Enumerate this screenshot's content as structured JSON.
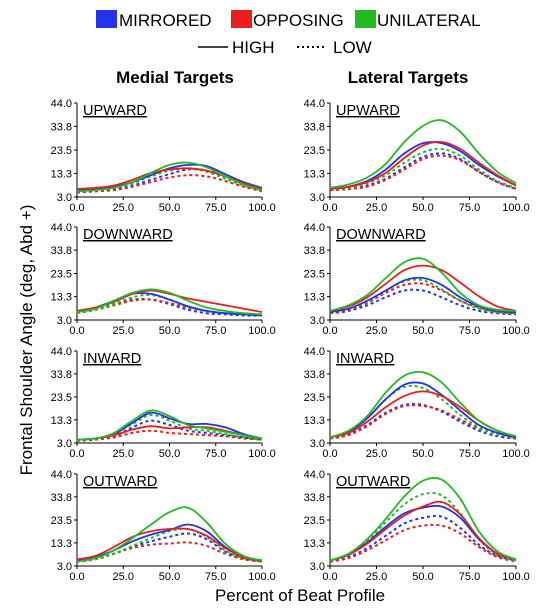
{
  "legend": {
    "conditions": [
      {
        "name": "MIRRORED",
        "color": "#2233ee"
      },
      {
        "name": "OPPOSING",
        "color": "#ee1c1c"
      },
      {
        "name": "UNILATERAL",
        "color": "#22bb22"
      }
    ],
    "styles": [
      {
        "name": "HIGH",
        "dash": "solid"
      },
      {
        "name": "LOW",
        "dash": "dotted"
      }
    ]
  },
  "column_titles": [
    "Medial Targets",
    "Lateral Targets"
  ],
  "y_axis_label": "Frontal Shoulder Angle (deg, Abd +)",
  "x_axis_label": "Percent of Beat Profile",
  "chart_data": {
    "type": "line",
    "x": [
      0,
      10,
      20,
      30,
      40,
      50,
      60,
      70,
      80,
      90,
      100
    ],
    "xlim": [
      0,
      100
    ],
    "ylim": [
      3,
      44
    ],
    "xticks": [
      "0.0",
      "25.0",
      "50.0",
      "75.0",
      "100.0"
    ],
    "yticks": [
      "3.0",
      "13.3",
      "23.5",
      "33.8",
      "44.0"
    ],
    "panels": [
      {
        "column": "Medial Targets",
        "title": "UPWARD",
        "series": [
          {
            "condition": "MIRRORED",
            "style": "HIGH",
            "values": [
              6,
              6.5,
              7.5,
              9.5,
              12.5,
              15.5,
              17,
              16.5,
              13,
              9.5,
              7
            ]
          },
          {
            "condition": "OPPOSING",
            "style": "HIGH",
            "values": [
              6.5,
              7,
              8,
              10.5,
              13.5,
              15,
              15.5,
              14.5,
              12,
              9,
              6.5
            ]
          },
          {
            "condition": "UNILATERAL",
            "style": "HIGH",
            "values": [
              5.5,
              6,
              7,
              9.5,
              13.5,
              17,
              18,
              16,
              12,
              8.5,
              6
            ]
          },
          {
            "condition": "MIRRORED",
            "style": "LOW",
            "values": [
              5,
              5.5,
              6.5,
              8,
              10.5,
              13,
              15,
              14.5,
              12,
              8.5,
              6
            ]
          },
          {
            "condition": "OPPOSING",
            "style": "LOW",
            "values": [
              5,
              5.5,
              6,
              7.5,
              9.5,
              11.5,
              12.5,
              12,
              10,
              7.5,
              5.5
            ]
          },
          {
            "condition": "UNILATERAL",
            "style": "LOW",
            "values": [
              5.5,
              6,
              7,
              9,
              12,
              14.5,
              15.5,
              14,
              11,
              8,
              6
            ]
          }
        ]
      },
      {
        "column": "Lateral Targets",
        "title": "UPWARD",
        "series": [
          {
            "condition": "MIRRORED",
            "style": "HIGH",
            "values": [
              6.5,
              7.5,
              10,
              15,
              22,
              26.5,
              26.5,
              23,
              17,
              12,
              8
            ]
          },
          {
            "condition": "OPPOSING",
            "style": "HIGH",
            "values": [
              6.5,
              7.5,
              9.5,
              13.5,
              20,
              25.5,
              27,
              24,
              18,
              12.5,
              8
            ]
          },
          {
            "condition": "UNILATERAL",
            "style": "HIGH",
            "values": [
              7,
              8.5,
              11.5,
              17.5,
              27,
              34,
              36.5,
              31.5,
              22,
              14,
              9
            ]
          },
          {
            "condition": "MIRRORED",
            "style": "LOW",
            "values": [
              6,
              6.5,
              8,
              11,
              16,
              20.5,
              22,
              19.5,
              14,
              9.5,
              6.5
            ]
          },
          {
            "condition": "OPPOSING",
            "style": "LOW",
            "values": [
              6,
              6.5,
              7.5,
              10.5,
              15,
              19.5,
              21,
              19,
              14,
              9.5,
              6.5
            ]
          },
          {
            "condition": "UNILATERAL",
            "style": "LOW",
            "values": [
              6.5,
              7,
              9,
              12.5,
              18,
              22.5,
              24,
              21,
              15,
              10,
              7
            ]
          }
        ]
      },
      {
        "column": "Medial Targets",
        "title": "DOWNWARD",
        "series": [
          {
            "condition": "MIRRORED",
            "style": "HIGH",
            "values": [
              7,
              8.5,
              11.5,
              14.5,
              14.5,
              12,
              9,
              7,
              6,
              5.5,
              5
            ]
          },
          {
            "condition": "OPPOSING",
            "style": "HIGH",
            "values": [
              7,
              8.5,
              11,
              14.5,
              16,
              14.5,
              12.5,
              11,
              9.5,
              8,
              6.5
            ]
          },
          {
            "condition": "UNILATERAL",
            "style": "HIGH",
            "values": [
              6.5,
              8,
              11.5,
              15,
              16.5,
              15,
              11.5,
              8.5,
              7,
              6,
              5.5
            ]
          },
          {
            "condition": "MIRRORED",
            "style": "LOW",
            "values": [
              6.5,
              8,
              10,
              12,
              12,
              10,
              7.5,
              6,
              5.5,
              5,
              5
            ]
          },
          {
            "condition": "OPPOSING",
            "style": "LOW",
            "values": [
              6.5,
              7.5,
              9.5,
              11.5,
              12,
              10.5,
              8.5,
              7,
              6,
              5.5,
              5
            ]
          },
          {
            "condition": "UNILATERAL",
            "style": "LOW",
            "values": [
              6,
              7.5,
              10,
              13,
              14,
              12,
              9,
              7,
              6,
              5.5,
              5
            ]
          }
        ]
      },
      {
        "column": "Lateral Targets",
        "title": "DOWNWARD",
        "series": [
          {
            "condition": "MIRRORED",
            "style": "HIGH",
            "values": [
              6.5,
              8,
              11.5,
              16,
              20.5,
              21.5,
              18.5,
              13,
              9,
              7,
              6.5
            ]
          },
          {
            "condition": "OPPOSING",
            "style": "HIGH",
            "values": [
              7,
              9,
              13,
              19,
              25,
              27,
              25,
              19.5,
              13.5,
              9,
              7
            ]
          },
          {
            "condition": "UNILATERAL",
            "style": "HIGH",
            "values": [
              7,
              9.5,
              14,
              21.5,
              28.5,
              30,
              24,
              15,
              9.5,
              7.5,
              7
            ]
          },
          {
            "condition": "MIRRORED",
            "style": "LOW",
            "values": [
              6,
              7,
              9.5,
              13,
              16,
              16,
              13,
              9.5,
              7,
              6,
              5.5
            ]
          },
          {
            "condition": "OPPOSING",
            "style": "LOW",
            "values": [
              6,
              7.5,
              10.5,
              15,
              18.5,
              19,
              16,
              11.5,
              8.5,
              6.5,
              6
            ]
          },
          {
            "condition": "UNILATERAL",
            "style": "LOW",
            "values": [
              6.5,
              8,
              11,
              16,
              20,
              20.5,
              16.5,
              11.5,
              8,
              6.5,
              6
            ]
          }
        ]
      },
      {
        "column": "Medial Targets",
        "title": "INWARD",
        "series": [
          {
            "condition": "MIRRORED",
            "style": "HIGH",
            "values": [
              4.5,
              5,
              7,
              12,
              16.5,
              14,
              11.5,
              11.5,
              10,
              7,
              5
            ]
          },
          {
            "condition": "OPPOSING",
            "style": "HIGH",
            "values": [
              4.5,
              5,
              6.5,
              9,
              10.5,
              9.5,
              10,
              10,
              8.5,
              6.5,
              5
            ]
          },
          {
            "condition": "UNILATERAL",
            "style": "HIGH",
            "values": [
              4.5,
              5,
              7.5,
              13,
              17.5,
              15,
              11,
              9.5,
              8,
              6.5,
              5
            ]
          },
          {
            "condition": "MIRRORED",
            "style": "LOW",
            "values": [
              4,
              4.5,
              6,
              10,
              13,
              11,
              8.5,
              7.5,
              6.5,
              5.5,
              4.5
            ]
          },
          {
            "condition": "OPPOSING",
            "style": "LOW",
            "values": [
              4,
              4.5,
              5.5,
              7.5,
              8.5,
              7.5,
              7,
              6.5,
              6,
              5,
              4.5
            ]
          },
          {
            "condition": "UNILATERAL",
            "style": "LOW",
            "values": [
              4,
              5,
              7,
              11.5,
              15.5,
              13,
              9.5,
              8.5,
              7,
              5.5,
              4.5
            ]
          }
        ]
      },
      {
        "column": "Lateral Targets",
        "title": "INWARD",
        "series": [
          {
            "condition": "MIRRORED",
            "style": "HIGH",
            "values": [
              5.5,
              8,
              14,
              22.5,
              29,
              29.5,
              24.5,
              17.5,
              11,
              7.5,
              5.5
            ]
          },
          {
            "condition": "OPPOSING",
            "style": "HIGH",
            "values": [
              5.5,
              7.5,
              12.5,
              19,
              24,
              26,
              24,
              19,
              13,
              8.5,
              6
            ]
          },
          {
            "condition": "UNILATERAL",
            "style": "HIGH",
            "values": [
              5.5,
              8.5,
              15,
              25.5,
              33,
              34.5,
              30,
              21,
              13,
              8.5,
              6
            ]
          },
          {
            "condition": "MIRRORED",
            "style": "LOW",
            "values": [
              5,
              7,
              11,
              16.5,
              20,
              20,
              17,
              12.5,
              8.5,
              6,
              5
            ]
          },
          {
            "condition": "OPPOSING",
            "style": "LOW",
            "values": [
              5,
              6.5,
              10.5,
              16,
              19.5,
              19.5,
              17.5,
              13.5,
              9.5,
              7,
              5
            ]
          },
          {
            "condition": "UNILATERAL",
            "style": "LOW",
            "values": [
              5.5,
              8,
              14,
              22.5,
              28,
              27.5,
              22.5,
              15.5,
              10,
              7,
              5.5
            ]
          }
        ]
      },
      {
        "column": "Medial Targets",
        "title": "OUTWARD",
        "series": [
          {
            "condition": "MIRRORED",
            "style": "HIGH",
            "values": [
              5.5,
              7,
              10,
              14,
              17,
              19,
              21.5,
              18.5,
              11.5,
              7,
              5.5
            ]
          },
          {
            "condition": "OPPOSING",
            "style": "HIGH",
            "values": [
              6,
              7.5,
              11.5,
              16,
              18.5,
              19.5,
              19.5,
              16.5,
              11,
              7,
              5.5
            ]
          },
          {
            "condition": "UNILATERAL",
            "style": "HIGH",
            "values": [
              5,
              6.5,
              10,
              15.5,
              21.5,
              27,
              29,
              22.5,
              13,
              7.5,
              5.5
            ]
          },
          {
            "condition": "MIRRORED",
            "style": "LOW",
            "values": [
              5,
              6,
              8.5,
              11.5,
              14,
              16,
              17.5,
              15,
              9.5,
              6.5,
              5
            ]
          },
          {
            "condition": "OPPOSING",
            "style": "LOW",
            "values": [
              5,
              6,
              8.5,
              11,
              12.5,
              13,
              13.5,
              12,
              8.5,
              6,
              5
            ]
          },
          {
            "condition": "UNILATERAL",
            "style": "LOW",
            "values": [
              5,
              6,
              8.5,
              12,
              15.5,
              18.5,
              19.5,
              16,
              10,
              6.5,
              5
            ]
          }
        ]
      },
      {
        "column": "Lateral Targets",
        "title": "OUTWARD",
        "series": [
          {
            "condition": "MIRRORED",
            "style": "HIGH",
            "values": [
              5.5,
              8,
              13.5,
              20.5,
              26.5,
              29,
              29.5,
              24.5,
              15,
              8.5,
              6
            ]
          },
          {
            "condition": "OPPOSING",
            "style": "HIGH",
            "values": [
              5.5,
              8,
              13,
              19.5,
              25.5,
              29.5,
              31.5,
              26,
              15.5,
              8.5,
              6
            ]
          },
          {
            "condition": "UNILATERAL",
            "style": "HIGH",
            "values": [
              5.5,
              8.5,
              15,
              24,
              34,
              41,
              41.5,
              33,
              18.5,
              9.5,
              6
            ]
          },
          {
            "condition": "MIRRORED",
            "style": "LOW",
            "values": [
              5,
              7,
              11,
              16.5,
              22,
              24.5,
              25,
              20,
              12.5,
              7.5,
              5.5
            ]
          },
          {
            "condition": "OPPOSING",
            "style": "LOW",
            "values": [
              5,
              6.5,
              10,
              14.5,
              19,
              21,
              21,
              17.5,
              11.5,
              7,
              5
            ]
          },
          {
            "condition": "UNILATERAL",
            "style": "LOW",
            "values": [
              5.5,
              8,
              14,
              22.5,
              30.5,
              35,
              34.5,
              26.5,
              15,
              8,
              5.5
            ]
          }
        ]
      }
    ]
  }
}
